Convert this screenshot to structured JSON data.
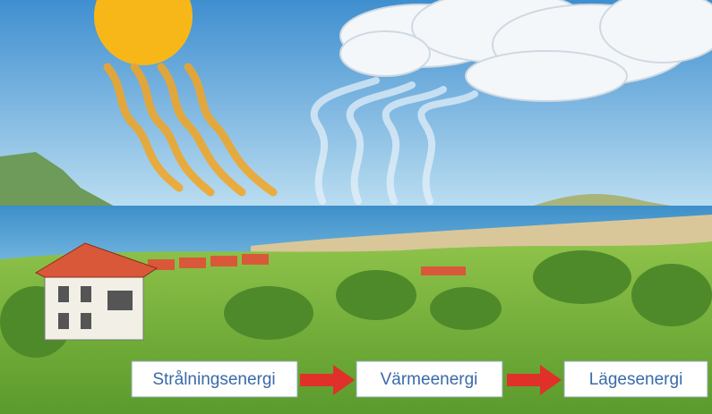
{
  "steps": [
    "Strålningsenergi",
    "Värmeenergi",
    "Lägesenergi"
  ]
}
